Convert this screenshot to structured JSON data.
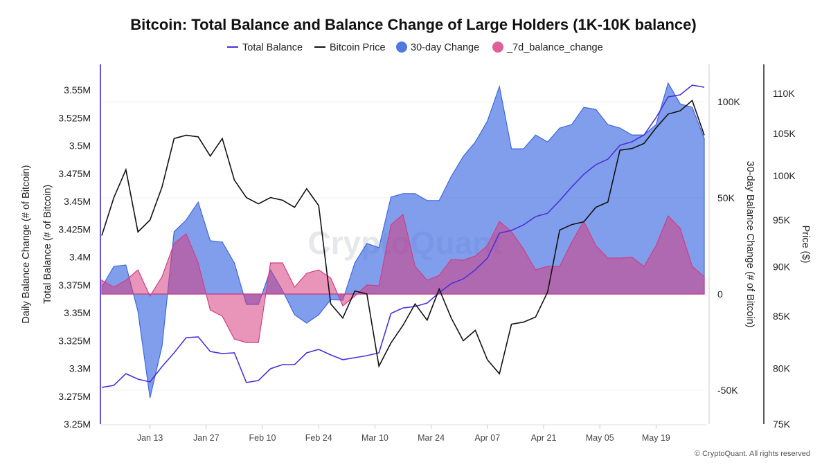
{
  "chart_data": {
    "type": "line",
    "title": "Bitcoin: Total Balance and Balance Change of Large Holders (1K-10K balance)",
    "watermark": "CryptoQuant",
    "footer": "© CryptoQuant. All rights reserved",
    "legend_position": "top",
    "legend": [
      {
        "name": "Total Balance",
        "marker": "line",
        "color": "#4b30d8"
      },
      {
        "name": "Bitcoin Price",
        "marker": "line",
        "color": "#111111"
      },
      {
        "name": "30-day Change",
        "marker": "circle",
        "color": "#4f78e0"
      },
      {
        "name": "_7d_balance_change",
        "marker": "circle",
        "color": "#df5f98"
      }
    ],
    "axes": {
      "left_titles": [
        "Daily Balance Change (# of Bitcoin)",
        "Total Balance (# of Bitcoin)"
      ],
      "left_ticks": [
        {
          "v": 3.25,
          "label": "3.25M"
        },
        {
          "v": 3.275,
          "label": "3.275M"
        },
        {
          "v": 3.3,
          "label": "3.3M"
        },
        {
          "v": 3.325,
          "label": "3.325M"
        },
        {
          "v": 3.35,
          "label": "3.35M"
        },
        {
          "v": 3.375,
          "label": "3.375M"
        },
        {
          "v": 3.4,
          "label": "3.4M"
        },
        {
          "v": 3.425,
          "label": "3.425M"
        },
        {
          "v": 3.45,
          "label": "3.45M"
        },
        {
          "v": 3.475,
          "label": "3.475M"
        },
        {
          "v": 3.5,
          "label": "3.5M"
        },
        {
          "v": 3.525,
          "label": "3.525M"
        },
        {
          "v": 3.55,
          "label": "3.55M"
        }
      ],
      "left_range_millions": [
        3.25,
        3.55
      ],
      "change_title": "30-day Balance Change (# of Bitcoin)",
      "change_ticks": [
        {
          "v": -50,
          "label": "-50K"
        },
        {
          "v": 0,
          "label": "0"
        },
        {
          "v": 50,
          "label": "50K"
        },
        {
          "v": 100,
          "label": "100K"
        }
      ],
      "price_title": "Price ($)",
      "price_scale": "log",
      "price_ticks": [
        {
          "v": 75,
          "label": "75K"
        },
        {
          "v": 80,
          "label": "80K"
        },
        {
          "v": 85,
          "label": "85K"
        },
        {
          "v": 90,
          "label": "90K"
        },
        {
          "v": 95,
          "label": "95K"
        },
        {
          "v": 100,
          "label": "100K"
        },
        {
          "v": 105,
          "label": "105K"
        },
        {
          "v": 110,
          "label": "110K"
        }
      ],
      "x_ticks": [
        {
          "date": "2025-01-13",
          "label": "Jan 13"
        },
        {
          "date": "2025-01-27",
          "label": "Jan 27"
        },
        {
          "date": "2025-02-10",
          "label": "Feb 10"
        },
        {
          "date": "2025-02-24",
          "label": "Feb 24"
        },
        {
          "date": "2025-03-10",
          "label": "Mar 10"
        },
        {
          "date": "2025-03-24",
          "label": "Mar 24"
        },
        {
          "date": "2025-04-07",
          "label": "Apr 07"
        },
        {
          "date": "2025-04-21",
          "label": "Apr 21"
        },
        {
          "date": "2025-05-05",
          "label": "May 05"
        },
        {
          "date": "2025-05-19",
          "label": "May 19"
        }
      ],
      "grid": true
    },
    "x": [
      "2025-01-01",
      "2025-01-04",
      "2025-01-07",
      "2025-01-10",
      "2025-01-13",
      "2025-01-16",
      "2025-01-19",
      "2025-01-22",
      "2025-01-25",
      "2025-01-28",
      "2025-01-31",
      "2025-02-03",
      "2025-02-06",
      "2025-02-09",
      "2025-02-12",
      "2025-02-15",
      "2025-02-18",
      "2025-02-21",
      "2025-02-24",
      "2025-02-27",
      "2025-03-02",
      "2025-03-05",
      "2025-03-08",
      "2025-03-11",
      "2025-03-14",
      "2025-03-17",
      "2025-03-20",
      "2025-03-23",
      "2025-03-26",
      "2025-03-29",
      "2025-04-01",
      "2025-04-04",
      "2025-04-07",
      "2025-04-10",
      "2025-04-13",
      "2025-04-16",
      "2025-04-19",
      "2025-04-22",
      "2025-04-25",
      "2025-04-28",
      "2025-05-01",
      "2025-05-04",
      "2025-05-07",
      "2025-05-10",
      "2025-05-13",
      "2025-05-16",
      "2025-05-19",
      "2025-05-22",
      "2025-05-25",
      "2025-05-28",
      "2025-05-31"
    ],
    "series": [
      {
        "name": "Total Balance",
        "unit": "M BTC",
        "axis": "left",
        "values": [
          3.283,
          3.2848,
          3.2953,
          3.2904,
          3.2879,
          3.3016,
          3.314,
          3.3276,
          3.3283,
          3.3152,
          3.3133,
          3.314,
          3.2873,
          3.2891,
          3.2997,
          3.3034,
          3.3034,
          3.314,
          3.3171,
          3.3121,
          3.3078,
          3.3096,
          3.3115,
          3.314,
          3.3494,
          3.3543,
          3.3556,
          3.3587,
          3.368,
          3.3761,
          3.3804,
          3.3885,
          3.399,
          3.4214,
          3.4239,
          3.4289,
          3.4363,
          3.4394,
          3.4506,
          3.463,
          3.4742,
          3.4829,
          3.4878,
          3.5003,
          3.5034,
          3.5096,
          3.5251,
          3.5437,
          3.5456,
          3.5543,
          3.5524
        ]
      },
      {
        "name": "Bitcoin Price",
        "unit": "K USD",
        "axis": "price",
        "values": [
          93.3,
          97.5,
          100.7,
          93.7,
          95.0,
          98.7,
          104.4,
          104.8,
          104.6,
          102.3,
          104.4,
          99.5,
          97.5,
          96.8,
          97.5,
          97.2,
          96.4,
          98.5,
          96.6,
          86.2,
          84.8,
          87.5,
          87.2,
          80.2,
          82.4,
          84.1,
          86.2,
          84.6,
          87.7,
          84.8,
          82.6,
          83.6,
          80.8,
          79.5,
          84.2,
          84.4,
          84.9,
          87.4,
          93.9,
          94.5,
          94.8,
          96.4,
          97.0,
          103.0,
          103.2,
          103.8,
          105.7,
          107.4,
          107.8,
          109.1,
          104.8
        ]
      },
      {
        "name": "30-day Change",
        "unit": "K BTC",
        "axis": "change",
        "values": [
          3.6,
          14.4,
          15.1,
          -9.0,
          -54.0,
          -27.0,
          32.4,
          38.5,
          47.8,
          27.7,
          27.0,
          16.2,
          -5.4,
          -5.4,
          12.6,
          1.8,
          -10.8,
          -15.1,
          -10.8,
          -2.9,
          -3.2,
          16.2,
          26.3,
          24.1,
          50.4,
          52.2,
          52.2,
          48.6,
          48.6,
          61.2,
          71.6,
          79.1,
          89.9,
          107.9,
          75.5,
          75.5,
          82.7,
          79.1,
          86.3,
          88.1,
          97.1,
          96.0,
          88.1,
          86.3,
          82.7,
          82.7,
          88.1,
          109.7,
          98.9,
          97.1,
          80.9
        ]
      },
      {
        "name": "_7d_balance_change",
        "unit": "K BTC",
        "axis": "change",
        "values": [
          7.2,
          3.6,
          7.2,
          12.6,
          -1.1,
          9.0,
          26.3,
          31.3,
          16.2,
          -8.3,
          -11.5,
          -23.4,
          -25.2,
          -25.2,
          16.2,
          16.2,
          3.6,
          10.8,
          12.6,
          8.3,
          -6.1,
          -1.1,
          4.7,
          4.3,
          36.0,
          41.4,
          14.4,
          7.2,
          9.7,
          18.0,
          17.6,
          19.8,
          25.2,
          37.8,
          32.4,
          23.4,
          12.6,
          14.4,
          14.4,
          27.0,
          37.8,
          25.2,
          18.7,
          18.7,
          19.1,
          14.4,
          25.2,
          40.6,
          34.2,
          14.4,
          9.0
        ]
      }
    ]
  }
}
